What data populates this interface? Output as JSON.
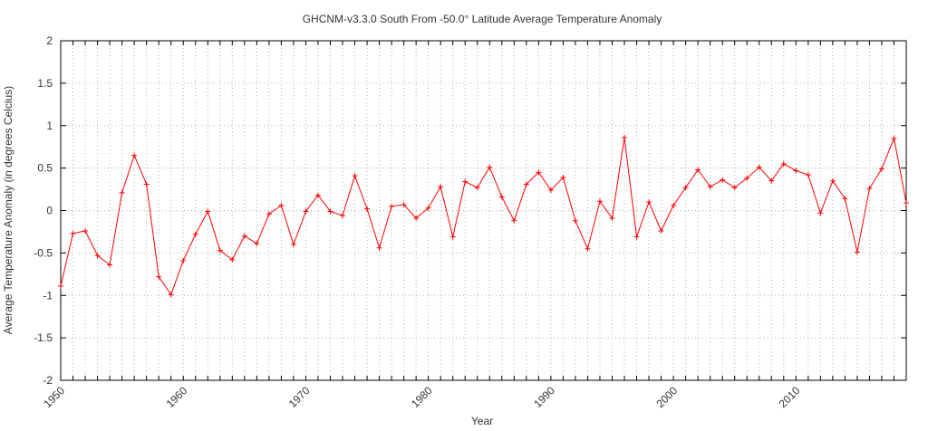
{
  "chart_data": {
    "type": "line",
    "title": "GHCNM-v3.3.0 South From -50.0° Latitude Average Temperature Anomaly",
    "xlabel": "Year",
    "ylabel": "Average Temperature Anomaly (in degrees Celcius)",
    "xlim": [
      1950,
      2019
    ],
    "ylim": [
      -2,
      2
    ],
    "x_ticks": [
      "1950",
      "1960",
      "1970",
      "1980",
      "1990",
      "2000",
      "2010"
    ],
    "y_ticks": [
      "-2",
      "-1.5",
      "-1",
      "-0.5",
      "0",
      "0.5",
      "1",
      "1.5",
      "2"
    ],
    "grid": true,
    "line_color": "#ff0000",
    "x": [
      1950,
      1951,
      1952,
      1953,
      1954,
      1955,
      1956,
      1957,
      1958,
      1959,
      1960,
      1961,
      1962,
      1963,
      1964,
      1965,
      1966,
      1967,
      1968,
      1969,
      1970,
      1971,
      1972,
      1973,
      1974,
      1975,
      1976,
      1977,
      1978,
      1979,
      1980,
      1981,
      1982,
      1983,
      1984,
      1985,
      1986,
      1987,
      1988,
      1989,
      1990,
      1991,
      1992,
      1993,
      1994,
      1995,
      1996,
      1997,
      1998,
      1999,
      2000,
      2001,
      2002,
      2003,
      2004,
      2005,
      2006,
      2007,
      2008,
      2009,
      2010,
      2011,
      2012,
      2013,
      2014,
      2015,
      2016,
      2017,
      2018,
      2019
    ],
    "values": [
      -0.89,
      -0.27,
      -0.24,
      -0.53,
      -0.64,
      0.21,
      0.65,
      0.31,
      -0.78,
      -0.99,
      -0.59,
      -0.28,
      -0.01,
      -0.47,
      -0.58,
      -0.3,
      -0.39,
      -0.04,
      0.06,
      -0.4,
      -0.01,
      0.18,
      -0.01,
      -0.06,
      0.41,
      0.02,
      -0.44,
      0.05,
      0.07,
      -0.09,
      0.03,
      0.28,
      -0.31,
      0.34,
      0.27,
      0.51,
      0.16,
      -0.12,
      0.31,
      0.45,
      0.24,
      0.39,
      -0.12,
      -0.45,
      0.11,
      -0.09,
      0.86,
      -0.31,
      0.1,
      -0.24,
      0.06,
      0.27,
      0.48,
      0.28,
      0.36,
      0.27,
      0.38,
      0.51,
      0.35,
      0.55,
      0.47,
      0.42,
      -0.03,
      0.35,
      0.14,
      -0.49,
      0.26,
      0.49,
      0.85,
      0.09
    ]
  }
}
